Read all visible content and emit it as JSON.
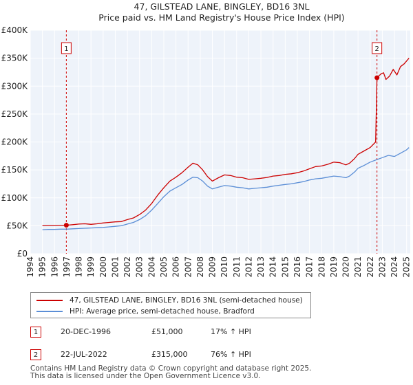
{
  "chart_data": {
    "type": "line",
    "title": "47, GILSTEAD LANE, BINGLEY, BD16 3NL",
    "subtitle": "Price paid vs. HM Land Registry's House Price Index (HPI)",
    "xlabel": "",
    "ylabel": "",
    "xlim": [
      1994,
      2025.3
    ],
    "ylim": [
      0,
      400000
    ],
    "x_ticks": [
      "1994",
      "1995",
      "1996",
      "1997",
      "1998",
      "1999",
      "2000",
      "2001",
      "2002",
      "2003",
      "2004",
      "2005",
      "2006",
      "2007",
      "2008",
      "2009",
      "2010",
      "2011",
      "2012",
      "2013",
      "2014",
      "2015",
      "2016",
      "2017",
      "2018",
      "2019",
      "2020",
      "2021",
      "2022",
      "2023",
      "2024",
      "2025"
    ],
    "y_ticks": [
      {
        "value": 0,
        "label": "£0"
      },
      {
        "value": 50000,
        "label": "£50K"
      },
      {
        "value": 100000,
        "label": "£100K"
      },
      {
        "value": 150000,
        "label": "£150K"
      },
      {
        "value": 200000,
        "label": "£200K"
      },
      {
        "value": 250000,
        "label": "£250K"
      },
      {
        "value": 300000,
        "label": "£300K"
      },
      {
        "value": 350000,
        "label": "£350K"
      },
      {
        "value": 400000,
        "label": "£400K"
      }
    ],
    "grid": true,
    "series": [
      {
        "name": "47, GILSTEAD LANE, BINGLEY, BD16 3NL (semi-detached house)",
        "color": "#cc0000",
        "x": [
          1995.0,
          1995.5,
          1996.0,
          1996.5,
          1996.97,
          1997.5,
          1998.0,
          1998.5,
          1999.0,
          1999.5,
          2000.0,
          2000.5,
          2001.0,
          2001.5,
          2002.0,
          2002.5,
          2003.0,
          2003.5,
          2004.0,
          2004.5,
          2005.0,
          2005.5,
          2006.0,
          2006.5,
          2007.0,
          2007.4,
          2007.8,
          2008.2,
          2008.6,
          2009.0,
          2009.5,
          2010.0,
          2010.5,
          2011.0,
          2011.5,
          2012.0,
          2012.5,
          2013.0,
          2013.5,
          2014.0,
          2014.5,
          2015.0,
          2015.5,
          2016.0,
          2016.5,
          2017.0,
          2017.5,
          2018.0,
          2018.5,
          2019.0,
          2019.5,
          2020.0,
          2020.3,
          2020.7,
          2021.0,
          2021.5,
          2022.0,
          2022.45,
          2022.56,
          2022.7,
          2022.9,
          2023.1,
          2023.3,
          2023.6,
          2023.9,
          2024.2,
          2024.5,
          2024.8,
          2025.0,
          2025.2
        ],
        "y": [
          50000,
          50500,
          50500,
          51000,
          51000,
          52000,
          53000,
          53500,
          52500,
          53500,
          55000,
          56000,
          57000,
          57500,
          61000,
          64000,
          70000,
          78000,
          90000,
          105000,
          118000,
          130000,
          137000,
          145000,
          155000,
          162000,
          159000,
          150000,
          138000,
          130000,
          136000,
          141000,
          140000,
          137000,
          136000,
          133000,
          134000,
          135000,
          136500,
          139000,
          140000,
          142000,
          143000,
          145000,
          148000,
          152000,
          156000,
          157000,
          160000,
          164000,
          163000,
          159000,
          162000,
          170000,
          178000,
          184000,
          190000,
          200000,
          315000,
          318000,
          322000,
          324000,
          312000,
          318000,
          330000,
          320000,
          335000,
          340000,
          345000,
          350000
        ]
      },
      {
        "name": "HPI: Average price, semi-detached house, Bradford",
        "color": "#5b8ed6",
        "x": [
          1995.0,
          1995.5,
          1996.0,
          1996.5,
          1997.0,
          1997.5,
          1998.0,
          1998.5,
          1999.0,
          1999.5,
          2000.0,
          2000.5,
          2001.0,
          2001.5,
          2002.0,
          2002.5,
          2003.0,
          2003.5,
          2004.0,
          2004.5,
          2005.0,
          2005.5,
          2006.0,
          2006.5,
          2007.0,
          2007.4,
          2007.8,
          2008.2,
          2008.6,
          2009.0,
          2009.5,
          2010.0,
          2010.5,
          2011.0,
          2011.5,
          2012.0,
          2012.5,
          2013.0,
          2013.5,
          2014.0,
          2014.5,
          2015.0,
          2015.5,
          2016.0,
          2016.5,
          2017.0,
          2017.5,
          2018.0,
          2018.5,
          2019.0,
          2019.5,
          2020.0,
          2020.3,
          2020.7,
          2021.0,
          2021.5,
          2022.0,
          2022.5,
          2023.0,
          2023.5,
          2024.0,
          2024.5,
          2025.0,
          2025.2
        ],
        "y": [
          43000,
          43500,
          43500,
          44000,
          44000,
          44500,
          45000,
          45500,
          46000,
          46500,
          47000,
          48000,
          49000,
          50000,
          53000,
          56000,
          61000,
          68000,
          78000,
          90000,
          102000,
          112000,
          118000,
          124000,
          132000,
          137000,
          136000,
          130000,
          121000,
          116000,
          119000,
          122000,
          121000,
          119000,
          118000,
          116000,
          117000,
          118000,
          119000,
          121000,
          122500,
          124000,
          125000,
          127000,
          129000,
          132000,
          134000,
          135000,
          137000,
          139000,
          138000,
          136000,
          139000,
          146000,
          153000,
          158000,
          164000,
          168000,
          172000,
          176000,
          174000,
          180000,
          186000,
          190000
        ]
      }
    ],
    "annotations": [
      {
        "label": "1",
        "x": 1996.97
      },
      {
        "label": "2",
        "x": 2022.56
      }
    ]
  },
  "legend": {
    "item1": "47, GILSTEAD LANE, BINGLEY, BD16 3NL (semi-detached house)",
    "item2": "HPI: Average price, semi-detached house, Bradford"
  },
  "sales": [
    {
      "num": "1",
      "date": "20-DEC-1996",
      "price": "£51,000",
      "hpi": "17% ↑ HPI"
    },
    {
      "num": "2",
      "date": "22-JUL-2022",
      "price": "£315,000",
      "hpi": "76% ↑ HPI"
    }
  ],
  "footer": {
    "line1": "Contains HM Land Registry data © Crown copyright and database right 2025.",
    "line2": "This data is licensed under the Open Government Licence v3.0."
  },
  "colors": {
    "property": "#cc0000",
    "hpi": "#5b8ed6",
    "annotation": "#cc0000"
  }
}
